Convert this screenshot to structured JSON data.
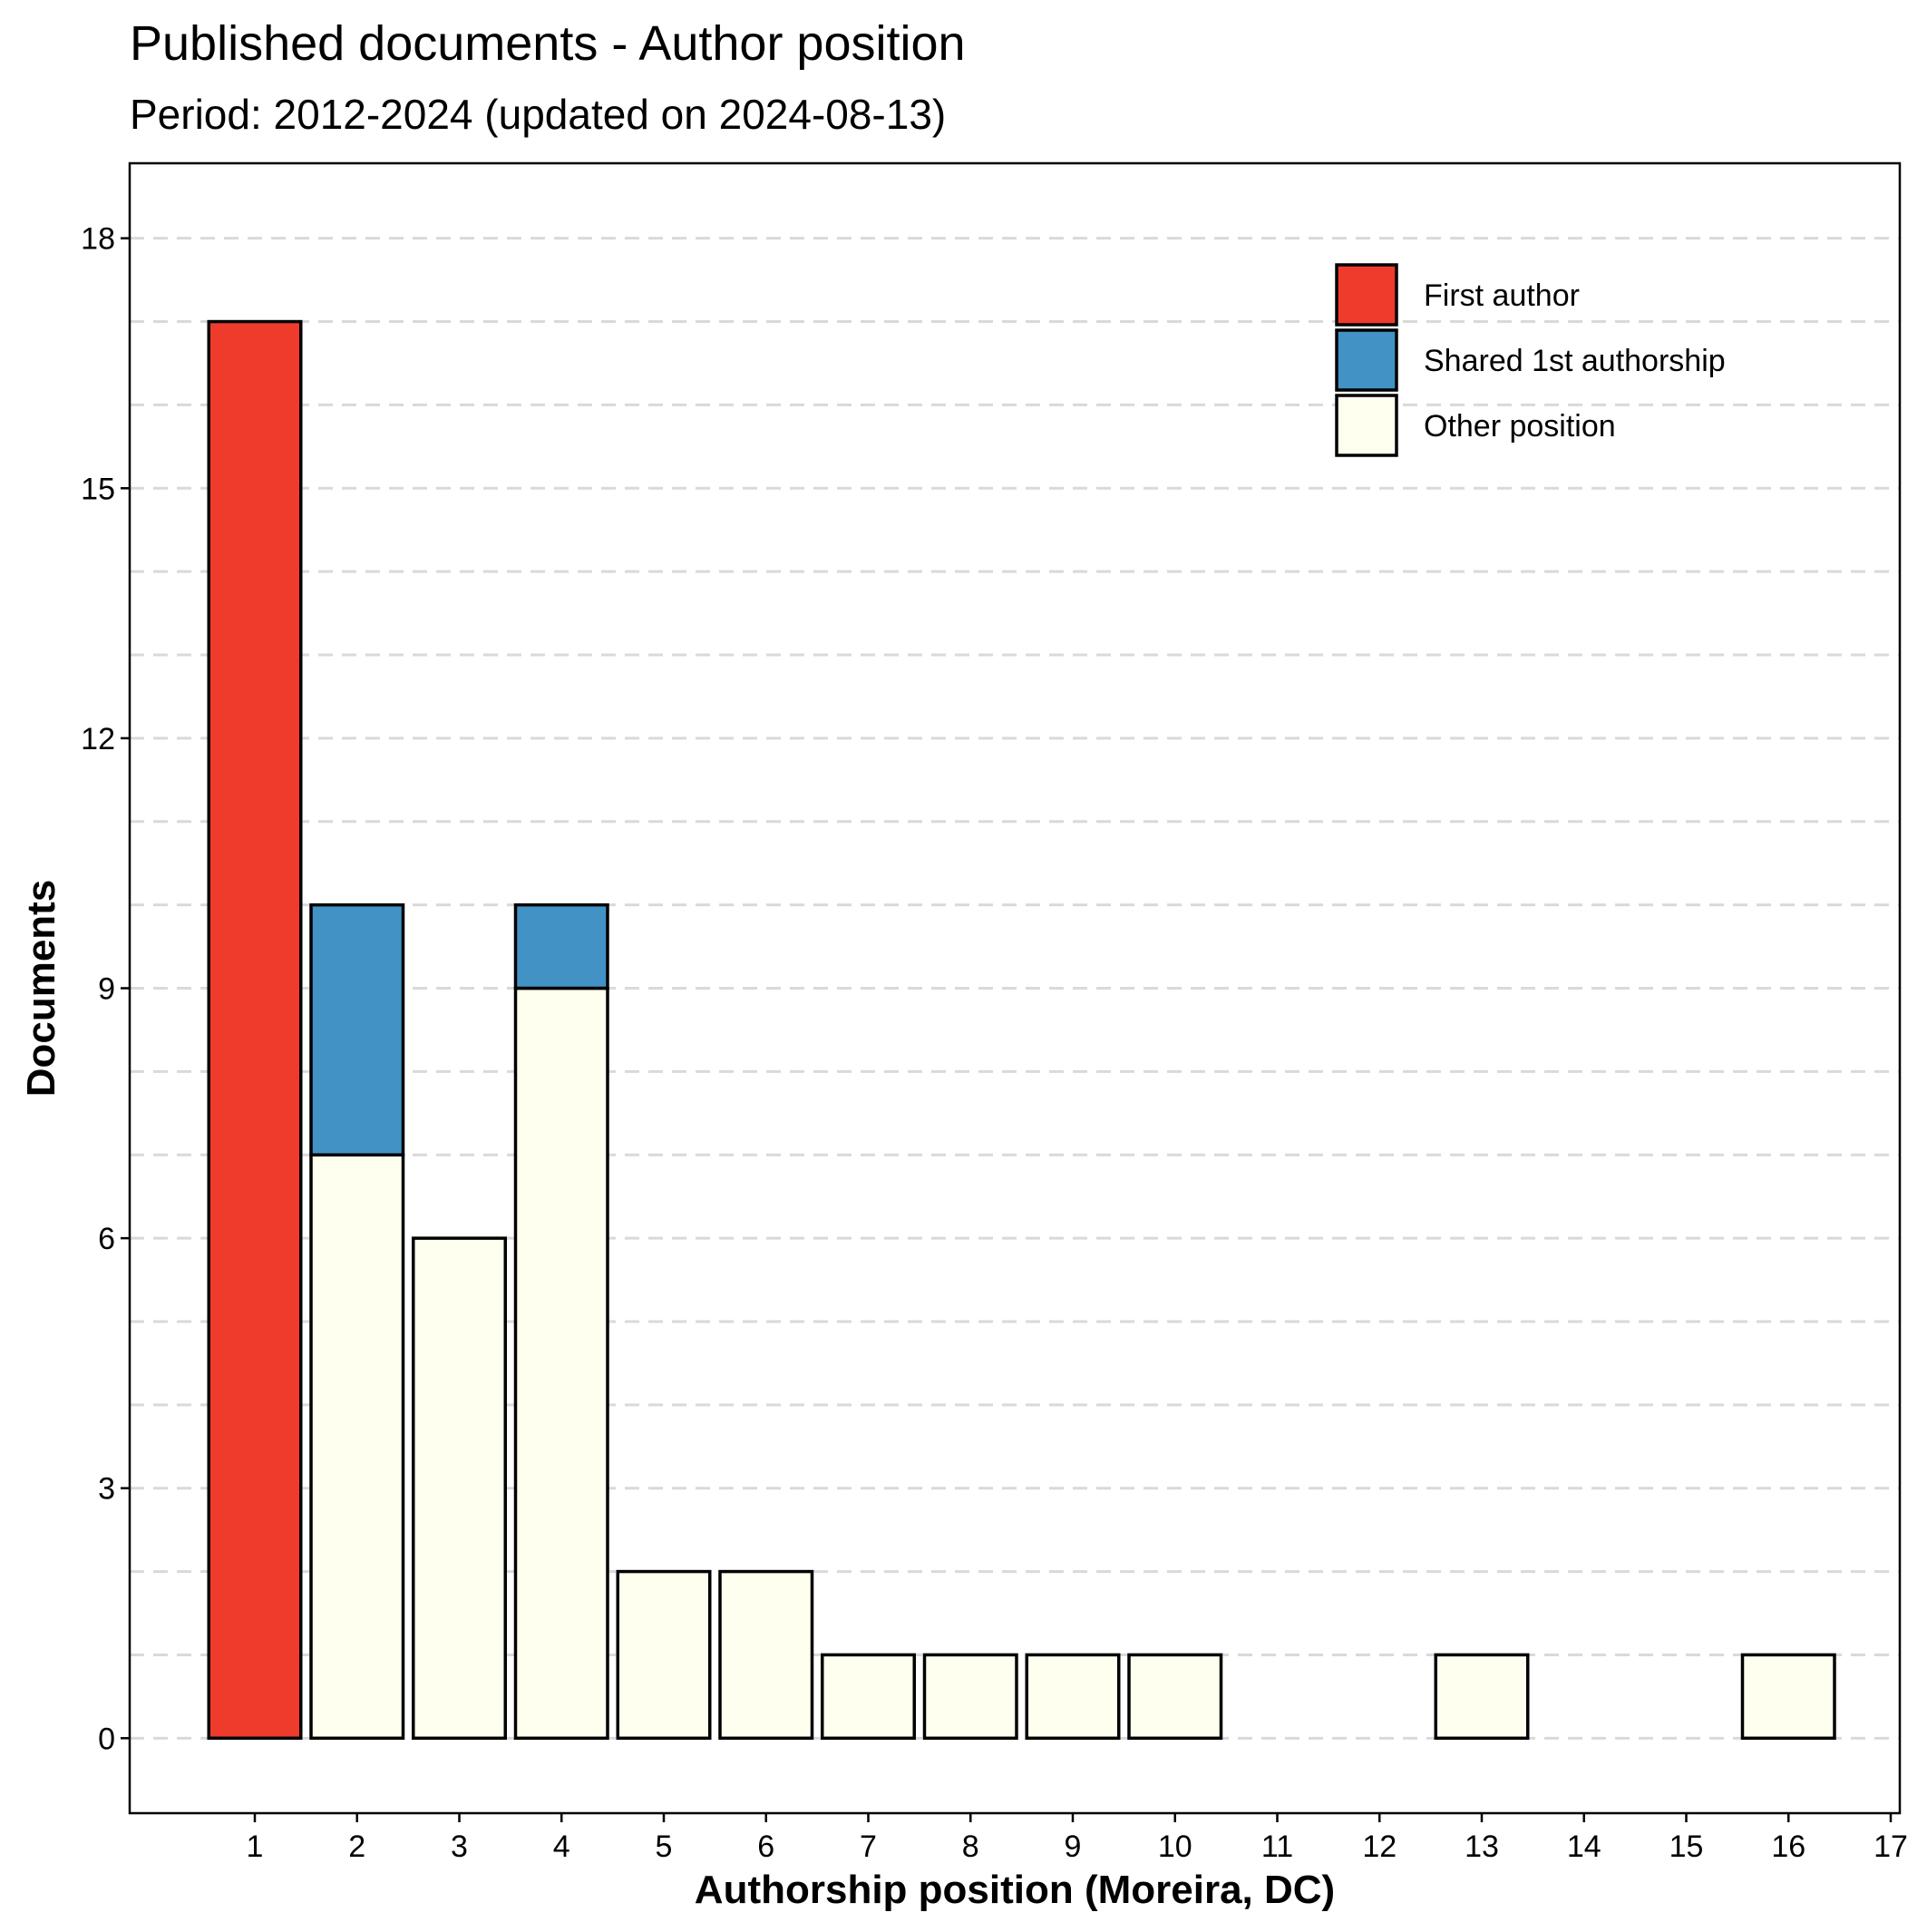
{
  "chart_data": {
    "type": "bar",
    "stacked": true,
    "title": "Published documents - Author position",
    "subtitle": "Period: 2012-2024 (updated on 2024-08-13)",
    "xlabel": "Authorship position (Moreira, DC)",
    "ylabel": "Documents",
    "categories": [
      "1",
      "2",
      "3",
      "4",
      "5",
      "6",
      "7",
      "8",
      "9",
      "10",
      "11",
      "12",
      "13",
      "14",
      "15",
      "16",
      "17"
    ],
    "series": [
      {
        "name": "Other position",
        "color": "#fffff0",
        "values": [
          0,
          7,
          6,
          9,
          2,
          2,
          1,
          1,
          1,
          1,
          0,
          0,
          1,
          0,
          0,
          1,
          0
        ]
      },
      {
        "name": "Shared 1st authorship",
        "color": "#4292c6",
        "values": [
          0,
          3,
          0,
          1,
          0,
          0,
          0,
          0,
          0,
          0,
          0,
          0,
          0,
          0,
          0,
          0,
          0
        ]
      },
      {
        "name": "First author",
        "color": "#ef3b2c",
        "values": [
          17,
          0,
          0,
          0,
          0,
          0,
          0,
          0,
          0,
          0,
          0,
          0,
          0,
          0,
          0,
          0,
          0
        ]
      }
    ],
    "ylim": [
      -0.9,
      18.9
    ],
    "yticks": [
      0,
      3,
      6,
      9,
      12,
      15,
      18
    ],
    "ygrid_step": 1,
    "grid": true,
    "legend": {
      "placement": "top-right",
      "order": [
        "First author",
        "Shared 1st authorship",
        "Other position"
      ]
    }
  }
}
